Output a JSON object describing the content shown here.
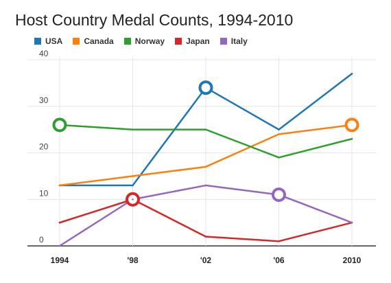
{
  "chart_data": {
    "type": "line",
    "title": "Host Country Medal Counts, 1994-2010",
    "categories": [
      "1994",
      "'98",
      "'02",
      "'06",
      "2010"
    ],
    "yticks": [
      0,
      10,
      20,
      30,
      40
    ],
    "ylim": [
      0,
      40
    ],
    "grid": true,
    "legend_position": "top",
    "series": [
      {
        "name": "USA",
        "color": "#1f77b4",
        "values": [
          13,
          13,
          34,
          25,
          37
        ],
        "highlight_index": 2
      },
      {
        "name": "Canada",
        "color": "#ff7f0e",
        "values": [
          13,
          15,
          17,
          24,
          26
        ],
        "highlight_index": 4
      },
      {
        "name": "Norway",
        "color": "#2ca02c",
        "values": [
          26,
          25,
          25,
          19,
          23
        ],
        "highlight_index": 0
      },
      {
        "name": "Japan",
        "color": "#d62728",
        "values": [
          5,
          10,
          2,
          1,
          5
        ],
        "highlight_index": 1
      },
      {
        "name": "Italy",
        "color": "#9467bd",
        "values": [
          0,
          10,
          13,
          11,
          5
        ],
        "highlight_index": 3
      }
    ]
  }
}
